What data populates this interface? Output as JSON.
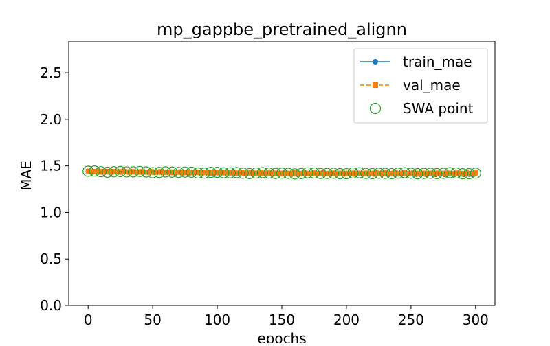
{
  "chart_data": {
    "type": "line",
    "title": "mp_gappbe_pretrained_alignn",
    "xlabel": "epochs",
    "ylabel": "MAE",
    "xlim": [
      -15,
      315
    ],
    "ylim": [
      0.0,
      2.84
    ],
    "x_ticks": [
      0,
      50,
      100,
      150,
      200,
      250,
      300
    ],
    "y_ticks": [
      0.0,
      0.5,
      1.0,
      1.5,
      2.0,
      2.5
    ],
    "x_tick_labels": [
      "0",
      "50",
      "100",
      "150",
      "200",
      "250",
      "300"
    ],
    "y_tick_labels": [
      "0.0",
      "0.5",
      "1.0",
      "1.5",
      "2.0",
      "2.5"
    ],
    "grid": false,
    "legend_position": "top-right",
    "colors": {
      "train": "#1f77b4",
      "val": "#ff7f0e",
      "swa": "#2ca02c"
    },
    "series": [
      {
        "name": "train_mae",
        "style": "solid line with circle markers",
        "x_start": 0,
        "x_end": 300,
        "x_step": 1,
        "values_summary": {
          "first": 1.44,
          "mid": 1.42,
          "last": 1.41
        }
      },
      {
        "name": "val_mae",
        "style": "dashed line with square markers",
        "x_start": 0,
        "x_end": 300,
        "x_step": 1,
        "values_summary": {
          "first": 1.44,
          "mid": 1.42,
          "last": 1.42
        }
      },
      {
        "name": "SWA point",
        "style": "hollow circle markers",
        "x_start": 0,
        "x_end": 300,
        "x_step": 5,
        "values_summary": {
          "first": 1.44,
          "mid": 1.42,
          "last": 1.42
        }
      }
    ],
    "legend": [
      "train_mae",
      "val_mae",
      "SWA point"
    ]
  }
}
